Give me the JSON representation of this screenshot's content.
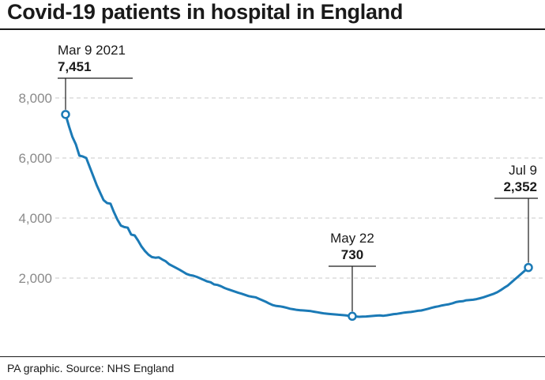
{
  "title": "Covid-19 patients in hospital in England",
  "source": "PA graphic. Source: NHS England",
  "colors": {
    "line": "#1b7ab6",
    "grid": "#c8c8c8",
    "axis": "#8a8a8a",
    "text": "#1a1a1a"
  },
  "chart_data": {
    "type": "line",
    "title": "Covid-19 patients in hospital in England",
    "xlabel": "",
    "ylabel": "",
    "grid": true,
    "ylim": [
      0,
      9000
    ],
    "yticks": [
      2000,
      4000,
      6000,
      8000
    ],
    "ytick_labels": [
      "2,000",
      "4,000",
      "6,000",
      "8,000"
    ],
    "x_start": "2021-03-09",
    "x_end": "2021-07-09",
    "series": [
      {
        "values": [
          7451,
          7050,
          6700,
          6450,
          6080,
          6050,
          6000,
          5700,
          5400,
          5100,
          4850,
          4600,
          4500,
          4480,
          4200,
          3950,
          3750,
          3700,
          3680,
          3450,
          3420,
          3250,
          3050,
          2900,
          2780,
          2700,
          2680,
          2690,
          2620,
          2560,
          2460,
          2400,
          2340,
          2280,
          2210,
          2140,
          2100,
          2080,
          2040,
          1990,
          1940,
          1890,
          1860,
          1790,
          1770,
          1730,
          1670,
          1630,
          1590,
          1550,
          1510,
          1480,
          1440,
          1400,
          1380,
          1360,
          1310,
          1260,
          1210,
          1150,
          1100,
          1070,
          1060,
          1040,
          1010,
          980,
          960,
          940,
          930,
          920,
          910,
          900,
          880,
          860,
          840,
          820,
          810,
          800,
          790,
          780,
          770,
          760,
          745,
          730,
          720,
          710,
          715,
          720,
          730,
          740,
          750,
          755,
          745,
          760,
          780,
          800,
          810,
          830,
          850,
          860,
          870,
          890,
          910,
          920,
          950,
          980,
          1010,
          1040,
          1060,
          1090,
          1110,
          1130,
          1160,
          1200,
          1220,
          1230,
          1260,
          1270,
          1280,
          1300,
          1330,
          1360,
          1400,
          1440,
          1480,
          1530,
          1600,
          1680,
          1750,
          1850,
          1950,
          2050,
          2150,
          2250,
          2352
        ]
      }
    ],
    "annotations": [
      {
        "date": "Mar 9 2021",
        "value_label": "7,451",
        "index": 0,
        "value": 7451,
        "align": "left"
      },
      {
        "date": "May 22",
        "value_label": "730",
        "index": 83,
        "value": 730,
        "align": "center"
      },
      {
        "date": "Jul 9",
        "value_label": "2,352",
        "index": 134,
        "value": 2352,
        "align": "right"
      }
    ]
  }
}
